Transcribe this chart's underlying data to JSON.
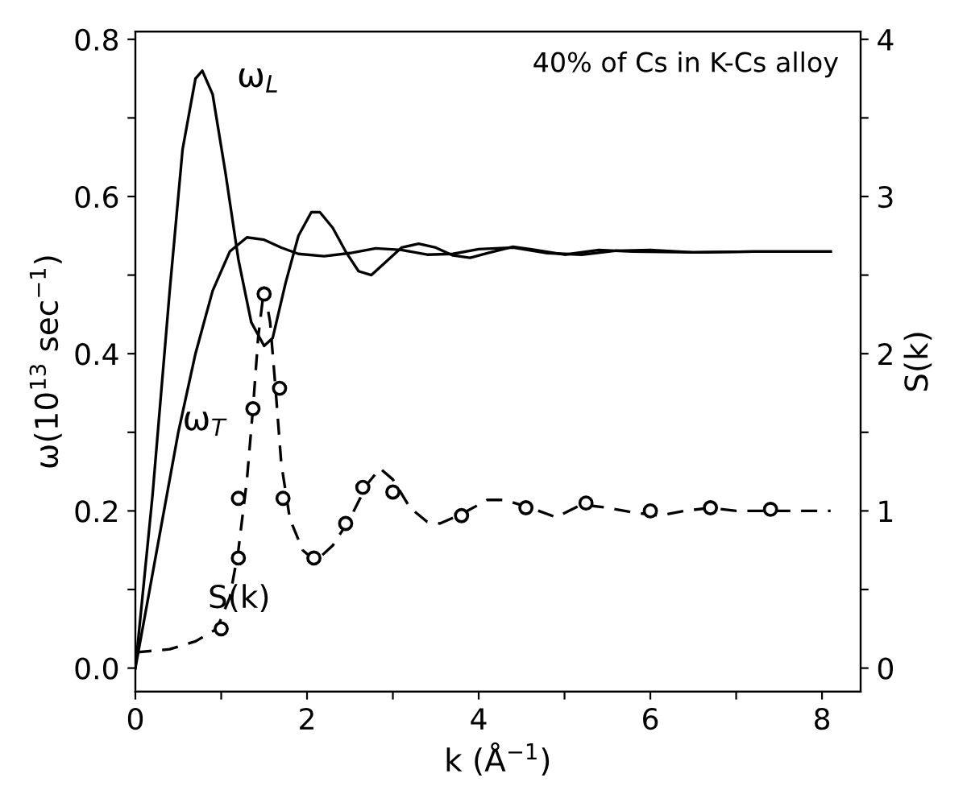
{
  "chart_data": {
    "type": "line",
    "xlabel": "k (Å$^{−1}$)",
    "ylabel": "ω(10$^{13}$ sec$^{−1}$)",
    "y2label": "S(k)",
    "xlim": [
      0,
      8.45
    ],
    "ylim": [
      -0.03,
      0.81
    ],
    "y2lim": [
      -0.15,
      4.05
    ],
    "xticks": [
      0,
      {
        "value": 1,
        "label": null
      },
      2,
      {
        "value": 3,
        "label": null
      },
      4,
      {
        "value": 5,
        "label": null
      },
      6,
      {
        "value": 7,
        "label": null
      },
      8
    ],
    "yticks": [
      {
        "value": 0,
        "label": "0.0"
      },
      {
        "value": 0.1,
        "label": null
      },
      {
        "value": 0.2,
        "label": "0.2"
      },
      {
        "value": 0.3,
        "label": null
      },
      {
        "value": 0.4,
        "label": "0.4"
      },
      {
        "value": 0.5,
        "label": null
      },
      {
        "value": 0.6,
        "label": "0.6"
      },
      {
        "value": 0.7,
        "label": null
      },
      {
        "value": 0.8,
        "label": "0.8"
      }
    ],
    "y2ticks": [
      0,
      {
        "value": 0.5,
        "label": null
      },
      1,
      {
        "value": 1.5,
        "label": null
      },
      2,
      {
        "value": 2.5,
        "label": null
      },
      3,
      {
        "value": 3.5,
        "label": null
      },
      4
    ],
    "grid": false,
    "legend": false,
    "series": [
      {
        "color": "#000000",
        "line_style": "solid",
        "x": [
          0,
          0.2,
          0.4,
          0.55,
          0.7,
          0.78,
          0.9,
          1.05,
          1.2,
          1.35,
          1.5,
          1.6,
          1.75,
          1.9,
          2.05,
          2.15,
          2.3,
          2.45,
          2.6,
          2.75,
          2.9,
          3.1,
          3.3,
          3.5,
          3.7,
          3.9,
          4.1,
          4.4,
          4.6,
          5.0,
          5.4,
          5.8,
          6.5,
          7.2,
          8.1
        ],
        "values": [
          0,
          0.22,
          0.48,
          0.66,
          0.75,
          0.76,
          0.73,
          0.63,
          0.52,
          0.44,
          0.41,
          0.42,
          0.49,
          0.55,
          0.58,
          0.58,
          0.56,
          0.53,
          0.505,
          0.5,
          0.515,
          0.535,
          0.54,
          0.535,
          0.525,
          0.522,
          0.528,
          0.536,
          0.533,
          0.526,
          0.532,
          0.53,
          0.529,
          0.53,
          0.53
        ]
      },
      {
        "color": "#000000",
        "line_style": "solid",
        "x": [
          0,
          0.3,
          0.5,
          0.7,
          0.9,
          1.1,
          1.3,
          1.5,
          1.7,
          1.9,
          2.2,
          2.5,
          2.8,
          3.1,
          3.4,
          3.7,
          4.0,
          4.4,
          4.8,
          5.2,
          5.6,
          6.0,
          6.5,
          7.2,
          8.1
        ],
        "values": [
          0,
          0.18,
          0.3,
          0.4,
          0.48,
          0.53,
          0.548,
          0.545,
          0.535,
          0.527,
          0.524,
          0.528,
          0.534,
          0.532,
          0.526,
          0.527,
          0.533,
          0.535,
          0.528,
          0.526,
          0.531,
          0.532,
          0.529,
          0.53,
          0.53
        ]
      },
      {
        "axis": "y2",
        "color": "#000000",
        "line_style": "dashed",
        "x": [
          0,
          0.4,
          0.7,
          0.95,
          1.1,
          1.2,
          1.3,
          1.37,
          1.43,
          1.5,
          1.57,
          1.63,
          1.7,
          1.8,
          1.95,
          2.1,
          2.3,
          2.5,
          2.7,
          2.85,
          3.0,
          3.2,
          3.4,
          3.55,
          3.8,
          4.1,
          4.3,
          4.6,
          4.9,
          5.2,
          5.5,
          5.8,
          6.1,
          6.4,
          6.7,
          7.0,
          7.4,
          8.1
        ],
        "values": [
          0.1,
          0.12,
          0.17,
          0.25,
          0.45,
          0.75,
          1.2,
          1.65,
          2.1,
          2.42,
          2.2,
          1.8,
          1.3,
          0.95,
          0.75,
          0.68,
          0.78,
          0.95,
          1.17,
          1.27,
          1.2,
          1.02,
          0.93,
          0.92,
          0.98,
          1.07,
          1.07,
          1.02,
          0.96,
          1.04,
          1.02,
          0.99,
          0.97,
          1.0,
          1.02,
          1.0,
          1.0,
          1.0
        ]
      },
      {
        "type": "scatter",
        "axis": "y2",
        "color": "#000000",
        "marker": "circle",
        "x": [
          1.0,
          1.2,
          1.2,
          1.37,
          1.5,
          1.68,
          1.72,
          2.08,
          2.45,
          2.65,
          3.0,
          3.8,
          4.55,
          5.25,
          6.0,
          6.7,
          7.4
        ],
        "values": [
          0.25,
          0.7,
          1.08,
          1.65,
          2.38,
          1.78,
          1.08,
          0.7,
          0.92,
          1.15,
          1.12,
          0.97,
          1.02,
          1.05,
          1.0,
          1.02,
          1.01
        ]
      }
    ],
    "annotations": [
      "ω$_{L}$",
      "ω$_{T}$",
      "S(k)",
      "40% of Cs in K-Cs alloy"
    ]
  }
}
